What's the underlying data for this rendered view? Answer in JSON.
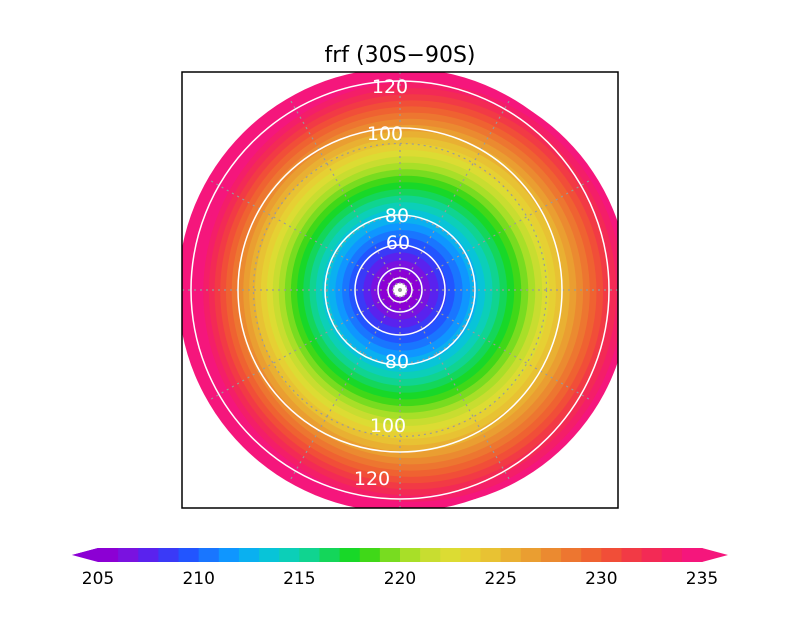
{
  "chart_data": {
    "type": "heatmap",
    "title": "frf (30S−90S)",
    "projection": "polar-stereographic",
    "lat_range": [
      "30S",
      "90S"
    ],
    "field": {
      "min_at": "pole",
      "min_value": 205,
      "max_value": 235,
      "trend": "increases with distance from pole; higher toward right/east side"
    },
    "contour_lines": [
      {
        "value": 120,
        "labels": [
          "120",
          "120"
        ]
      },
      {
        "value": 100,
        "labels": [
          "100",
          "100"
        ]
      },
      {
        "value": 80,
        "labels": [
          "80",
          "80"
        ]
      },
      {
        "value": 60,
        "labels": [
          "60"
        ]
      }
    ],
    "colorbar": {
      "orientation": "horizontal",
      "min": 205,
      "max": 235,
      "step": 1,
      "ticks": [
        "205",
        "210",
        "215",
        "220",
        "225",
        "230",
        "235"
      ],
      "colors": [
        "#8c00d4",
        "#7a12e0",
        "#5a22ee",
        "#3a3af7",
        "#2255ff",
        "#1976ff",
        "#0f96ff",
        "#0ab0f0",
        "#08c4d8",
        "#0ccfb8",
        "#10d490",
        "#14d65a",
        "#18d828",
        "#40d818",
        "#78dc20",
        "#a8df28",
        "#c8dd30",
        "#dcdc33",
        "#e6d033",
        "#e8c233",
        "#e9b032",
        "#ea9e31",
        "#eb8a30",
        "#ed7630",
        "#ef6231",
        "#f14e38",
        "#f23a45",
        "#f32a55",
        "#f41e68",
        "#f5167c"
      ],
      "extend": "both"
    },
    "grid": true
  }
}
